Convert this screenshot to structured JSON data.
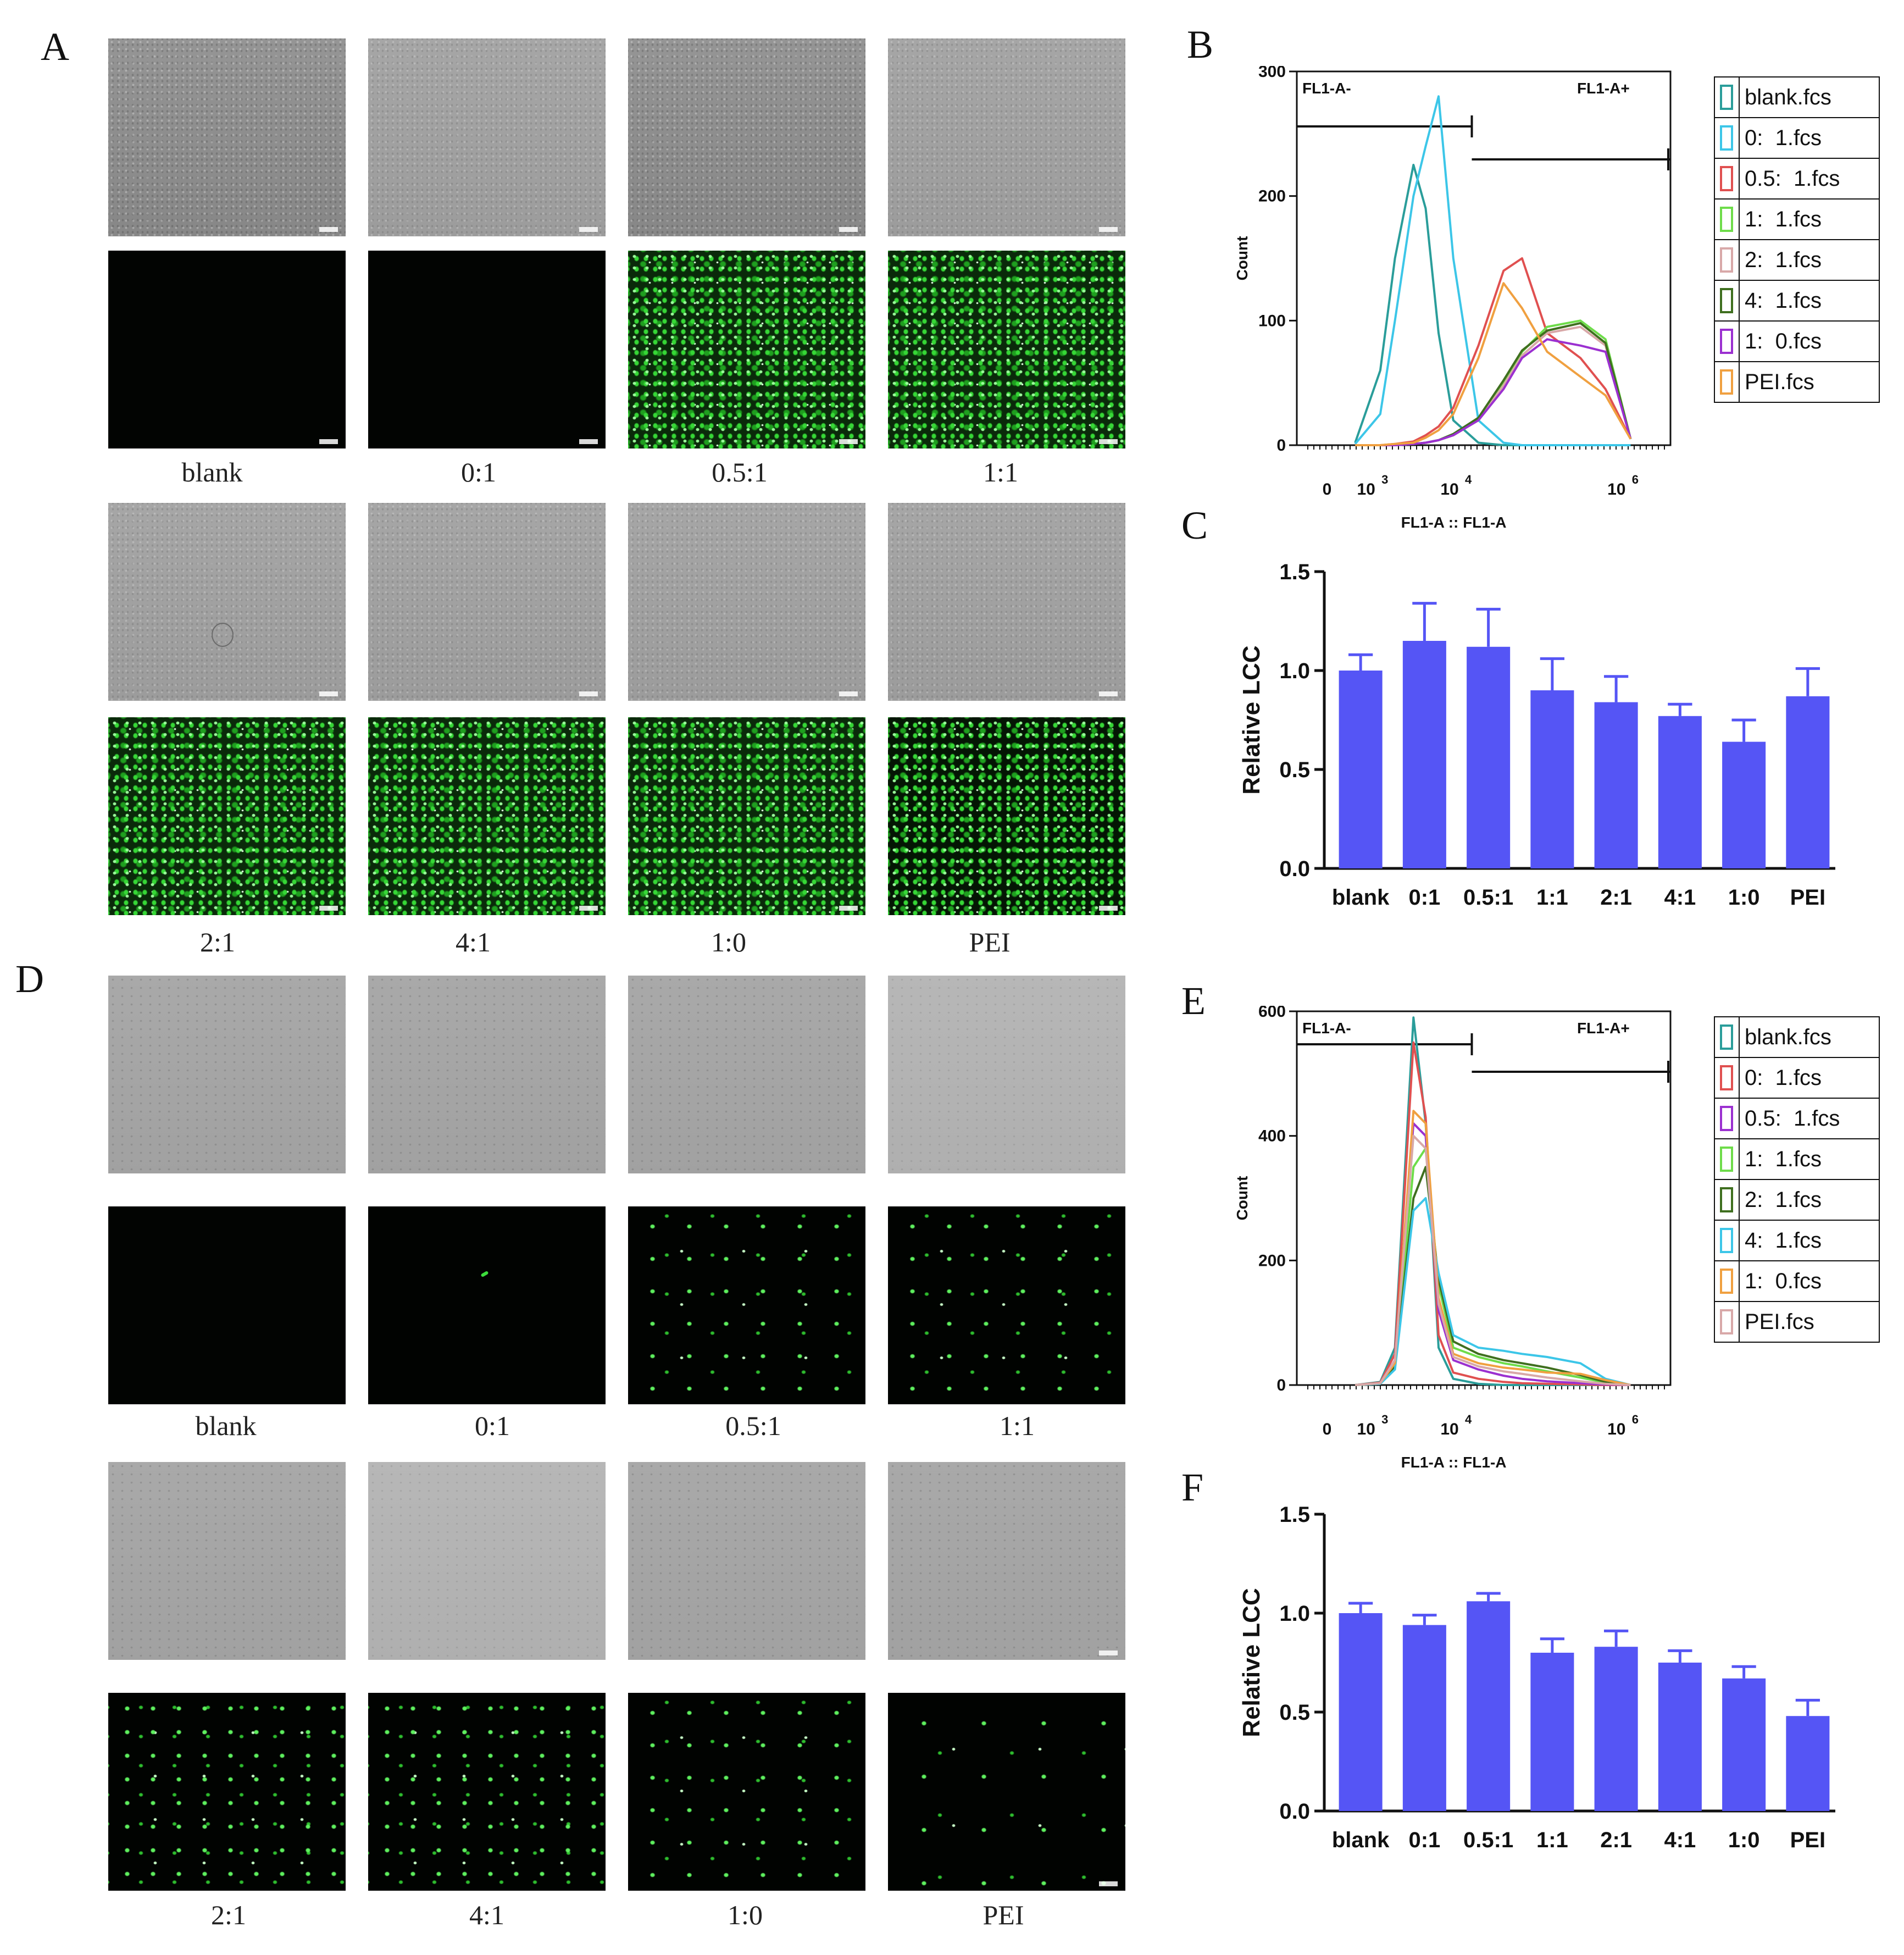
{
  "panels": {
    "A": "A",
    "B": "B",
    "C": "C",
    "D": "D",
    "E": "E",
    "F": "F"
  },
  "image_labels": {
    "A_row1": [
      "blank",
      "0:1",
      "0.5:1",
      "1:1"
    ],
    "A_row2": [
      "2:1",
      "4:1",
      "1:0",
      "PEI"
    ],
    "D_row1": [
      "blank",
      "0:1",
      "0.5:1",
      "1:1"
    ],
    "D_row2": [
      "2:1",
      "4:1",
      "1:0",
      "PEI"
    ]
  },
  "flow_B": {
    "gate_left": "FL1-A-",
    "gate_right": "FL1-A+",
    "ylabel": "Count",
    "xlabel": "FL1-A :: FL1-A",
    "yticks": [
      "0",
      "100",
      "200",
      "300"
    ],
    "ymax": 300,
    "xticks": [
      "0",
      "10",
      "10",
      "10"
    ],
    "xtick_exp": [
      "",
      "3",
      "4",
      "6"
    ],
    "legend": [
      {
        "name": "blank.fcs",
        "color": "#2a9d9a"
      },
      {
        "name": "0:  1.fcs",
        "color": "#3cc6e8"
      },
      {
        "name": "0.5:  1.fcs",
        "color": "#e05050"
      },
      {
        "name": "1:  1.fcs",
        "color": "#6edc4a"
      },
      {
        "name": "2:  1.fcs",
        "color": "#d8a8a8"
      },
      {
        "name": "4:  1.fcs",
        "color": "#3f6f1f"
      },
      {
        "name": "1:  0.fcs",
        "color": "#9b30d0"
      },
      {
        "name": "PEI.fcs",
        "color": "#f0a040"
      }
    ]
  },
  "flow_E": {
    "gate_left": "FL1-A-",
    "gate_right": "FL1-A+",
    "ylabel": "Count",
    "xlabel": "FL1-A :: FL1-A",
    "yticks": [
      "0",
      "200",
      "400",
      "600"
    ],
    "ymax": 600,
    "xticks": [
      "0",
      "10",
      "10",
      "10"
    ],
    "xtick_exp": [
      "",
      "3",
      "4",
      "6"
    ],
    "legend": [
      {
        "name": "blank.fcs",
        "color": "#2a9d9a"
      },
      {
        "name": "0:  1.fcs",
        "color": "#e05050"
      },
      {
        "name": "0.5:  1.fcs",
        "color": "#9b30d0"
      },
      {
        "name": "1:  1.fcs",
        "color": "#6edc4a"
      },
      {
        "name": "2:  1.fcs",
        "color": "#3f6f1f"
      },
      {
        "name": "4:  1.fcs",
        "color": "#3cc6e8"
      },
      {
        "name": "1:  0.fcs",
        "color": "#f0a040"
      },
      {
        "name": "PEI.fcs",
        "color": "#d8a8a8"
      }
    ]
  },
  "chart_data": [
    {
      "id": "B",
      "type": "line",
      "title": "",
      "xlabel": "FL1-A :: FL1-A",
      "ylabel": "Count",
      "xscale": "log",
      "ylim": [
        0,
        300
      ],
      "x": [
        1000,
        2000,
        3000,
        5000,
        7000,
        10000,
        15000,
        30000,
        60000,
        100000,
        200000,
        500000,
        1000000,
        2000000
      ],
      "series": [
        {
          "name": "blank.fcs",
          "values": [
            2,
            60,
            150,
            225,
            190,
            90,
            20,
            2,
            0,
            0,
            0,
            0,
            0,
            0
          ]
        },
        {
          "name": "0:  1.fcs",
          "values": [
            1,
            25,
            100,
            200,
            240,
            280,
            150,
            20,
            2,
            0,
            0,
            0,
            0,
            0
          ]
        },
        {
          "name": "0.5:  1.fcs",
          "values": [
            0,
            0,
            1,
            3,
            8,
            15,
            30,
            80,
            140,
            150,
            90,
            70,
            45,
            5
          ]
        },
        {
          "name": "1:  1.fcs",
          "values": [
            0,
            0,
            0,
            1,
            2,
            4,
            8,
            20,
            50,
            75,
            95,
            100,
            85,
            5
          ]
        },
        {
          "name": "2:  1.fcs",
          "values": [
            0,
            0,
            0,
            1,
            2,
            4,
            8,
            20,
            48,
            72,
            90,
            95,
            80,
            5
          ]
        },
        {
          "name": "4:  1.fcs",
          "values": [
            0,
            0,
            0,
            1,
            2,
            4,
            9,
            22,
            52,
            76,
            92,
            98,
            82,
            5
          ]
        },
        {
          "name": "1:  0.fcs",
          "values": [
            0,
            0,
            0,
            1,
            2,
            4,
            8,
            20,
            45,
            70,
            85,
            80,
            75,
            5
          ]
        },
        {
          "name": "PEI.fcs",
          "values": [
            0,
            0,
            1,
            2,
            6,
            12,
            25,
            70,
            130,
            110,
            75,
            55,
            40,
            5
          ]
        }
      ]
    },
    {
      "id": "C",
      "type": "bar",
      "title": "",
      "categories": [
        "blank",
        "0:1",
        "0.5:1",
        "1:1",
        "2:1",
        "4:1",
        "1:0",
        "PEI"
      ],
      "values": [
        1.0,
        1.15,
        1.12,
        0.9,
        0.84,
        0.77,
        0.64,
        0.87
      ],
      "errors": [
        0.08,
        0.19,
        0.19,
        0.16,
        0.13,
        0.06,
        0.11,
        0.14
      ],
      "ylabel": "Relative LCC",
      "ylim": [
        0,
        1.5
      ],
      "yticks": [
        "0.0",
        "0.5",
        "1.0",
        "1.5"
      ],
      "color": "#5555f5"
    },
    {
      "id": "E",
      "type": "line",
      "title": "",
      "xlabel": "FL1-A :: FL1-A",
      "ylabel": "Count",
      "xscale": "log",
      "ylim": [
        0,
        600
      ],
      "x": [
        1000,
        2000,
        3000,
        5000,
        7000,
        10000,
        15000,
        30000,
        60000,
        100000,
        200000,
        500000,
        1000000,
        2000000
      ],
      "series": [
        {
          "name": "blank.fcs",
          "values": [
            0,
            5,
            60,
            590,
            420,
            60,
            10,
            2,
            0,
            0,
            0,
            0,
            0,
            0
          ]
        },
        {
          "name": "0:  1.fcs",
          "values": [
            0,
            4,
            50,
            550,
            430,
            80,
            20,
            10,
            5,
            3,
            2,
            1,
            0,
            0
          ]
        },
        {
          "name": "0.5:  1.fcs",
          "values": [
            0,
            3,
            40,
            420,
            400,
            120,
            40,
            25,
            15,
            10,
            6,
            3,
            1,
            0
          ]
        },
        {
          "name": "1:  1.fcs",
          "values": [
            0,
            2,
            30,
            350,
            380,
            160,
            60,
            45,
            35,
            30,
            22,
            12,
            4,
            0
          ]
        },
        {
          "name": "2:  1.fcs",
          "values": [
            0,
            2,
            30,
            300,
            350,
            170,
            70,
            50,
            40,
            35,
            28,
            16,
            5,
            0
          ]
        },
        {
          "name": "4:  1.fcs",
          "values": [
            0,
            2,
            25,
            280,
            300,
            180,
            80,
            60,
            55,
            50,
            45,
            35,
            10,
            0
          ]
        },
        {
          "name": "1:  0.fcs",
          "values": [
            0,
            3,
            35,
            440,
            420,
            140,
            50,
            35,
            28,
            25,
            20,
            18,
            8,
            0
          ]
        },
        {
          "name": "PEI.fcs",
          "values": [
            0,
            3,
            40,
            400,
            380,
            130,
            45,
            30,
            22,
            18,
            12,
            6,
            2,
            0
          ]
        }
      ]
    },
    {
      "id": "F",
      "type": "bar",
      "title": "",
      "categories": [
        "blank",
        "0:1",
        "0.5:1",
        "1:1",
        "2:1",
        "4:1",
        "1:0",
        "PEI"
      ],
      "values": [
        1.0,
        0.94,
        1.06,
        0.8,
        0.83,
        0.75,
        0.67,
        0.48
      ],
      "errors": [
        0.05,
        0.05,
        0.04,
        0.07,
        0.08,
        0.06,
        0.06,
        0.08
      ],
      "ylabel": "Relative LCC",
      "ylim": [
        0,
        1.5
      ],
      "yticks": [
        "0.0",
        "0.5",
        "1.0",
        "1.5"
      ],
      "color": "#5555f5"
    }
  ]
}
